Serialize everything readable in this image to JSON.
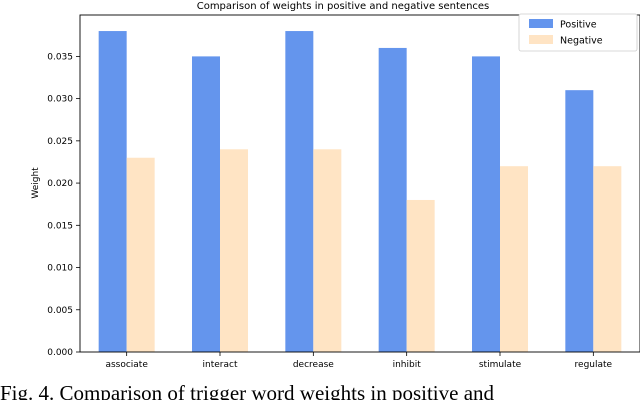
{
  "chart_data": {
    "type": "bar",
    "title": "Comparison of weights in positive and negative sentences",
    "xlabel": "",
    "ylabel": "Weight",
    "categories": [
      "associate",
      "interact",
      "decrease",
      "inhibit",
      "stimulate",
      "regulate"
    ],
    "series": [
      {
        "name": "Positive",
        "color": "#6495ED",
        "values": [
          0.038,
          0.035,
          0.038,
          0.036,
          0.035,
          0.031
        ]
      },
      {
        "name": "Negative",
        "color": "#FFE4C4",
        "values": [
          0.023,
          0.024,
          0.024,
          0.018,
          0.022,
          0.022
        ]
      }
    ],
    "ylim": [
      0,
      0.0399
    ],
    "yticks": [
      "0.000",
      "0.005",
      "0.010",
      "0.015",
      "0.020",
      "0.025",
      "0.030",
      "0.035"
    ],
    "legend": "top-right",
    "grid": false
  },
  "caption": "Fig. 4.   Comparison of trigger word weights in positive and"
}
